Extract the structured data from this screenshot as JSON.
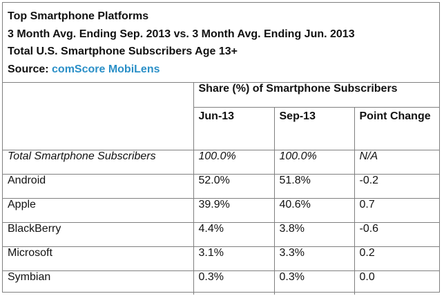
{
  "header": {
    "title": "Top Smartphone Platforms",
    "subtitle": "3 Month Avg. Ending Sep. 2013 vs. 3 Month Avg. Ending Jun. 2013",
    "population": "Total U.S. Smartphone Subscribers Age 13+",
    "source_label": "Source: ",
    "source_name": "comScore MobiLens"
  },
  "chart_data": {
    "type": "table",
    "group_header": "Share (%) of Smartphone Subscribers",
    "columns": [
      "Jun-13",
      "Sep-13",
      "Point Change"
    ],
    "total_row": {
      "label": "Total Smartphone Subscribers",
      "values": [
        "100.0%",
        "100.0%",
        "N/A"
      ]
    },
    "rows": [
      {
        "label": "Android",
        "values": [
          "52.0%",
          "51.8%",
          "-0.2"
        ]
      },
      {
        "label": "Apple",
        "values": [
          "39.9%",
          "40.6%",
          "0.7"
        ]
      },
      {
        "label": "BlackBerry",
        "values": [
          "4.4%",
          "3.8%",
          "-0.6"
        ]
      },
      {
        "label": "Microsoft",
        "values": [
          "3.1%",
          "3.3%",
          "0.2"
        ]
      },
      {
        "label": "Symbian",
        "values": [
          "0.3%",
          "0.3%",
          "0.0"
        ]
      }
    ]
  },
  "colors": {
    "border": "#7f7f7f",
    "source_accent": "#2a8fc7",
    "text": "#111111"
  }
}
